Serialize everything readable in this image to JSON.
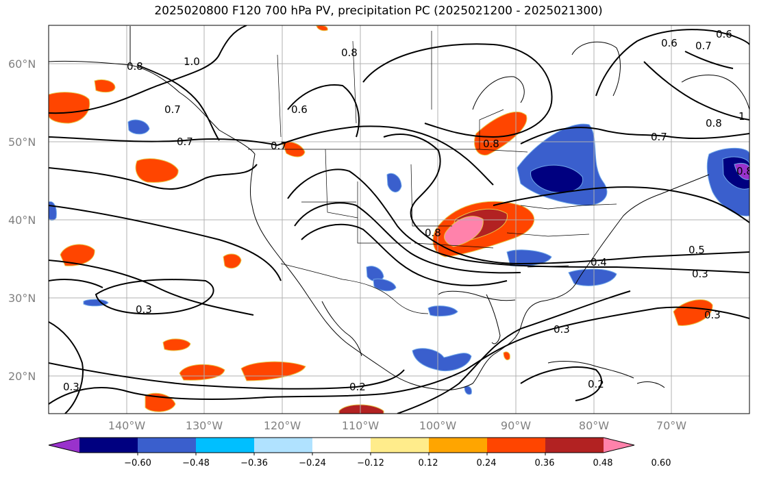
{
  "title": "2025020800 F120 700 hPa PV, precipitation PC (2025021200 - 2025021300)",
  "map": {
    "lon_range": [
      -150,
      -60
    ],
    "lat_range": [
      15,
      65
    ],
    "lat_labels": [
      "20°N",
      "30°N",
      "40°N",
      "50°N",
      "60°N"
    ],
    "lon_labels": [
      "140°W",
      "130°W",
      "120°W",
      "110°W",
      "100°W",
      "90°W",
      "80°W",
      "70°W"
    ],
    "gridlines": true,
    "grid_color": "#b0b0b0"
  },
  "contour_labels": [
    "0.8",
    "1.0",
    "0.8",
    "0.7",
    "0.7",
    "0.6",
    "0.7",
    "0.8",
    "0.8",
    "0.7",
    "0.6",
    "0.7",
    "1",
    "0.8",
    "0.6",
    "0.8",
    "0.5",
    "0.4",
    "0.3",
    "0.3",
    "0.3",
    "0.3",
    "0.2",
    "0.2",
    "0.3"
  ],
  "colorbar": {
    "ticks": [
      "−0.60",
      "−0.48",
      "−0.36",
      "−0.24",
      "−0.12",
      "0.12",
      "0.24",
      "0.36",
      "0.48",
      "0.60"
    ],
    "colors": [
      "#9932cc",
      "#000080",
      "#3a5fcd",
      "#00bfff",
      "#b0e2ff",
      "#ffffff",
      "#ffec8b",
      "#ffa500",
      "#ff4500",
      "#b22222",
      "#ff82ab"
    ],
    "extend": "both"
  },
  "chart_data": {
    "type": "map-contour",
    "title": "2025020800 F120 700 hPa PV, precipitation PC (2025021200 - 2025021300)",
    "variable_contours": "700 hPa PV",
    "variable_filled": "precipitation PC",
    "contour_levels": [
      0.2,
      0.3,
      0.4,
      0.5,
      0.6,
      0.7,
      0.8,
      1.0
    ],
    "fill_levels": [
      -0.6,
      -0.48,
      -0.36,
      -0.24,
      -0.12,
      0.12,
      0.24,
      0.36,
      0.48,
      0.6
    ],
    "xlim": [
      -150,
      -60
    ],
    "ylim": [
      15,
      65
    ]
  }
}
